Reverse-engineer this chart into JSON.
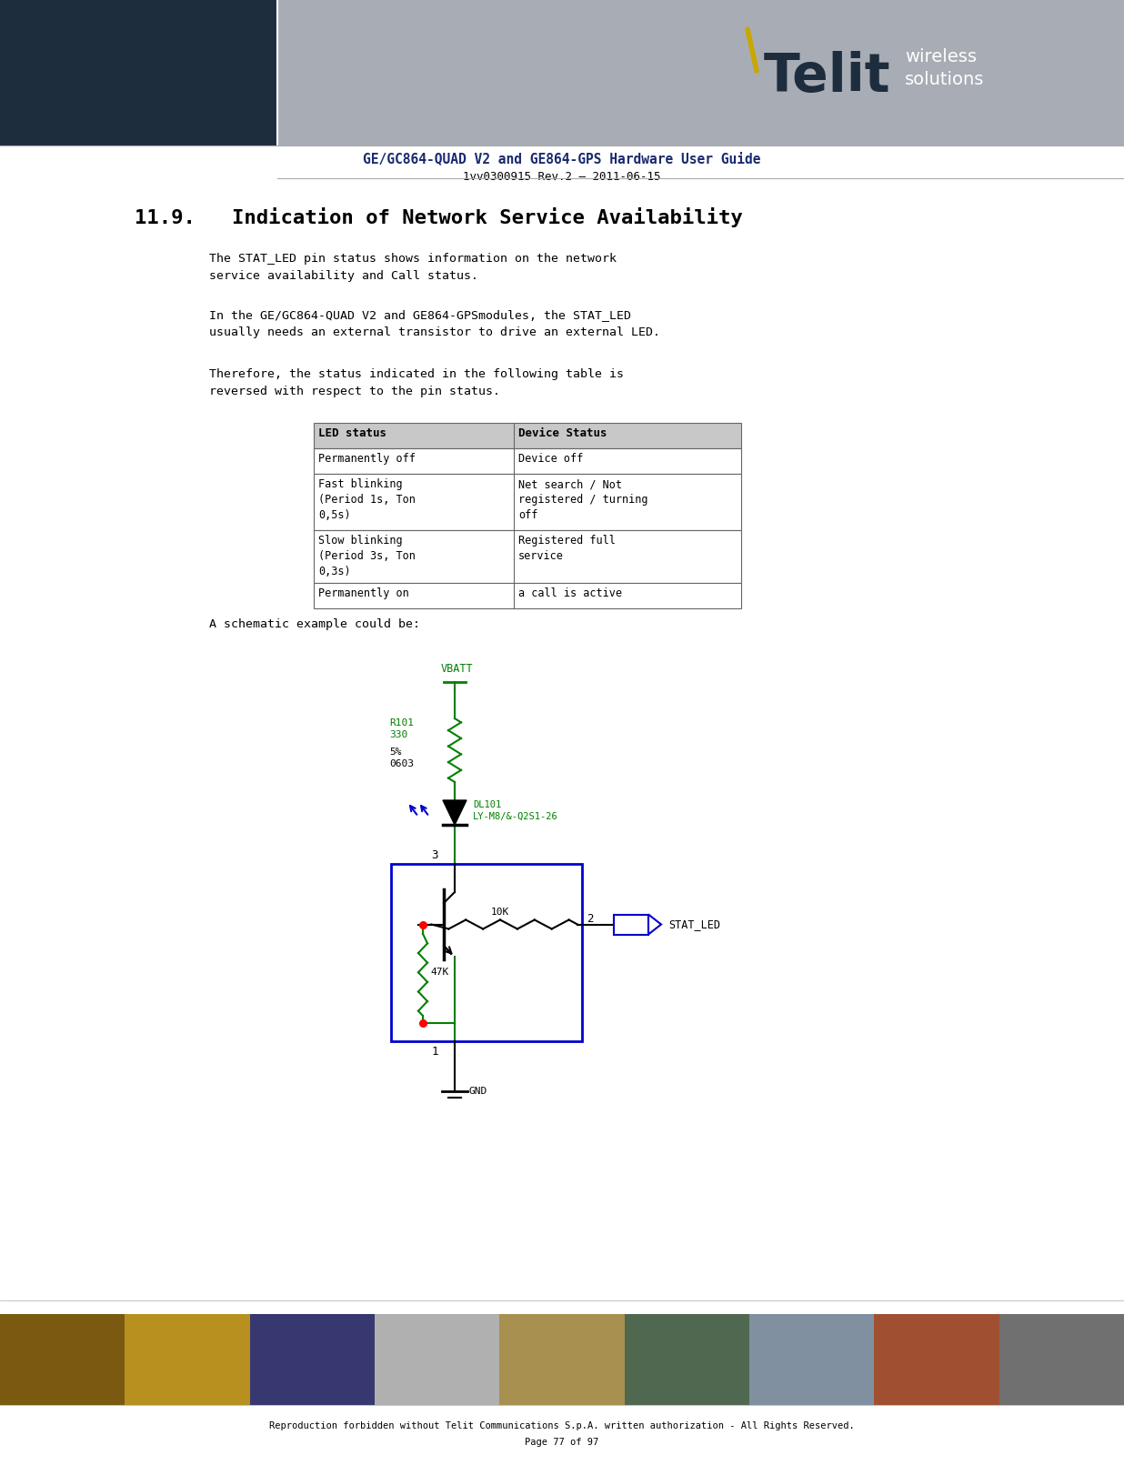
{
  "page_title": "GE/GC864-QUAD V2 and GE864-GPS Hardware User Guide",
  "page_subtitle": "1vv0300915 Rev.2 – 2011-06-15",
  "section_title": "11.9.   Indication of Network Service Availability",
  "para1": "The STAT_LED pin status shows information on the network\nservice availability and Call status.",
  "para2": "In the GE/GC864-QUAD V2 and GE864-GPSmodules, the STAT_LED\nusually needs an external transistor to drive an external LED.",
  "para3": "Therefore, the status indicated in the following table is\nreversed with respect to the pin status.",
  "schematic_note": "A schematic example could be:",
  "table_headers": [
    "LED status",
    "Device Status"
  ],
  "table_rows": [
    [
      "Permanently off",
      "Device off"
    ],
    [
      "Fast blinking\n(Period 1s, Ton\n0,5s)",
      "Net search / Not\nregistered / turning\noff"
    ],
    [
      "Slow blinking\n(Period 3s, Ton\n0,3s)",
      "Registered full\nservice"
    ],
    [
      "Permanently on",
      "a call is active"
    ]
  ],
  "header_bg": "#c0c0c0",
  "bg_color": "#ffffff",
  "header_bar_dark": "#1e2d3d",
  "header_bar_gray": "#a8adb5",
  "title_color": "#1a2a6e",
  "text_color": "#000000",
  "green_color": "#008000",
  "blue_color": "#0000cc",
  "footer_text": "Reproduction forbidden without Telit Communications S.p.A. written authorization - All Rights Reserved.",
  "footer_page": "Page 77 of 97",
  "footer_colors": [
    "#7a5a10",
    "#b89020",
    "#383870",
    "#b0b0b0",
    "#a89050",
    "#506850",
    "#8090a0",
    "#a05030",
    "#707070"
  ]
}
